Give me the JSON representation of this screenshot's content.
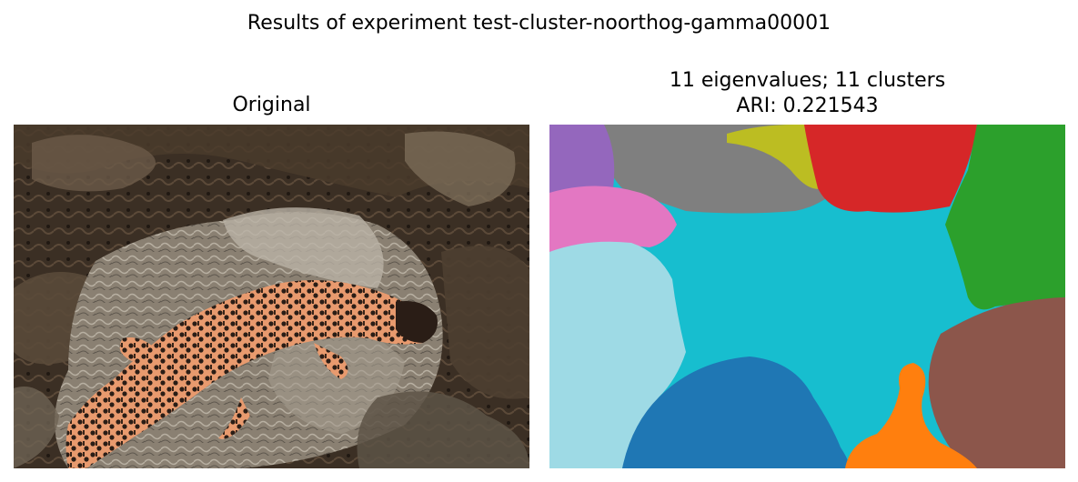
{
  "figure": {
    "suptitle": "Results of experiment test-cluster-noorthog-gamma00001"
  },
  "left_panel": {
    "title": "Original"
  },
  "right_panel": {
    "title_line1": "11 eigenvalues; 11 clusters",
    "title_line2": "ARI: 0.221543",
    "cluster_colors": {
      "purple": "#9467bd",
      "gray": "#7f7f7f",
      "olive": "#bcbd22",
      "red": "#d62728",
      "green": "#2ca02c",
      "pink": "#e377c2",
      "cyan": "#17becf",
      "light_blue": "#9edae5",
      "blue": "#1f77b4",
      "orange": "#ff7f0e",
      "brown": "#8c564b"
    }
  }
}
